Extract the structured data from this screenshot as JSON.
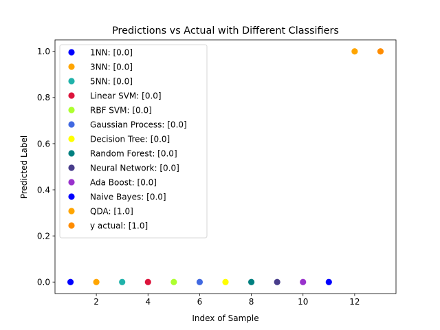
{
  "chart_data": {
    "type": "scatter",
    "title": "Predictions vs Actual with Different Classifiers",
    "xlabel": "Index of Sample",
    "ylabel": "Predicted Label",
    "xlim": [
      0.4,
      13.6
    ],
    "ylim": [
      -0.05,
      1.05
    ],
    "xticks": [
      2,
      4,
      6,
      8,
      10,
      12
    ],
    "yticks": [
      0.0,
      0.2,
      0.4,
      0.6,
      0.8,
      1.0
    ],
    "xtick_labels": [
      "2",
      "4",
      "6",
      "8",
      "10",
      "12"
    ],
    "ytick_labels": [
      "0.0",
      "0.2",
      "0.4",
      "0.6",
      "0.8",
      "1.0"
    ],
    "grid": false,
    "legend_position": "upper-left",
    "series": [
      {
        "name": "1NN: [0.0]",
        "color": "#0000ff",
        "x": [
          1
        ],
        "y": [
          0.0
        ]
      },
      {
        "name": "3NN: [0.0]",
        "color": "#ffa500",
        "x": [
          2
        ],
        "y": [
          0.0
        ]
      },
      {
        "name": "5NN: [0.0]",
        "color": "#20b2aa",
        "x": [
          3
        ],
        "y": [
          0.0
        ]
      },
      {
        "name": "Linear SVM: [0.0]",
        "color": "#dc143c",
        "x": [
          4
        ],
        "y": [
          0.0
        ]
      },
      {
        "name": "RBF SVM: [0.0]",
        "color": "#adff2f",
        "x": [
          5
        ],
        "y": [
          0.0
        ]
      },
      {
        "name": "Gaussian Process: [0.0]",
        "color": "#4169e1",
        "x": [
          6
        ],
        "y": [
          0.0
        ]
      },
      {
        "name": "Decision Tree: [0.0]",
        "color": "#ffff00",
        "x": [
          7
        ],
        "y": [
          0.0
        ]
      },
      {
        "name": "Random Forest: [0.0]",
        "color": "#008080",
        "x": [
          8
        ],
        "y": [
          0.0
        ]
      },
      {
        "name": "Neural Network: [0.0]",
        "color": "#483d8b",
        "x": [
          9
        ],
        "y": [
          0.0
        ]
      },
      {
        "name": "Ada Boost: [0.0]",
        "color": "#9932cc",
        "x": [
          10
        ],
        "y": [
          0.0
        ]
      },
      {
        "name": "Naive Bayes: [0.0]",
        "color": "#0000ff",
        "x": [
          11
        ],
        "y": [
          0.0
        ]
      },
      {
        "name": "QDA: [1.0]",
        "color": "#ffa500",
        "x": [
          12
        ],
        "y": [
          1.0
        ]
      },
      {
        "name": "y actual: [1.0]",
        "color": "#ff8c00",
        "x": [
          13
        ],
        "y": [
          1.0
        ]
      }
    ]
  }
}
